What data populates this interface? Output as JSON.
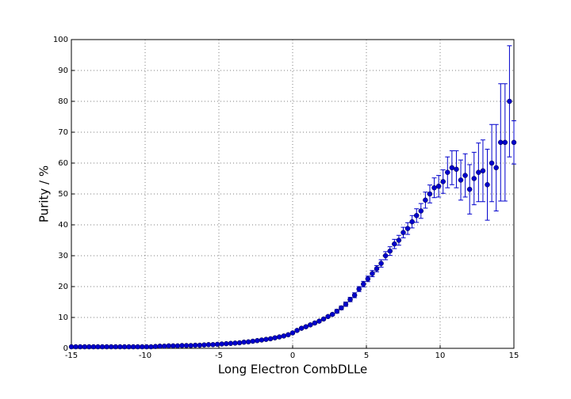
{
  "chart_data": {
    "type": "errorbar-scatter",
    "xlabel": "Long Electron CombDLLe",
    "ylabel": "Purity / %",
    "xlim": [
      -15,
      15
    ],
    "ylim": [
      0,
      100
    ],
    "xticks": [
      -15,
      -10,
      -5,
      0,
      5,
      10,
      15
    ],
    "yticks": [
      0,
      10,
      20,
      30,
      40,
      50,
      60,
      70,
      80,
      90,
      100
    ],
    "grid": true,
    "series": [
      {
        "color": "#0000cc",
        "x": [
          -15,
          -14.7,
          -14.4,
          -14.1,
          -13.8,
          -13.5,
          -13.2,
          -12.9,
          -12.6,
          -12.3,
          -12,
          -11.7,
          -11.4,
          -11.1,
          -10.8,
          -10.5,
          -10.2,
          -9.9,
          -9.6,
          -9.3,
          -9,
          -8.7,
          -8.4,
          -8.1,
          -7.8,
          -7.5,
          -7.2,
          -6.9,
          -6.6,
          -6.3,
          -6,
          -5.7,
          -5.4,
          -5.1,
          -4.8,
          -4.5,
          -4.2,
          -3.9,
          -3.6,
          -3.3,
          -3,
          -2.7,
          -2.4,
          -2.1,
          -1.8,
          -1.5,
          -1.2,
          -0.9,
          -0.6,
          -0.3,
          0,
          0.3,
          0.6,
          0.9,
          1.2,
          1.5,
          1.8,
          2.1,
          2.4,
          2.7,
          3,
          3.3,
          3.6,
          3.9,
          4.2,
          4.5,
          4.8,
          5.1,
          5.4,
          5.7,
          6,
          6.3,
          6.6,
          6.9,
          7.2,
          7.5,
          7.8,
          8.1,
          8.4,
          8.7,
          9,
          9.3,
          9.6,
          9.9,
          10.2,
          10.5,
          10.8,
          11.1,
          11.4,
          11.7,
          12,
          12.3,
          12.6,
          12.9,
          13.2,
          13.5,
          13.8,
          14.1,
          14.4,
          14.7,
          15
        ],
        "values": [
          0.5,
          0.5,
          0.5,
          0.5,
          0.5,
          0.5,
          0.5,
          0.5,
          0.5,
          0.5,
          0.5,
          0.5,
          0.5,
          0.5,
          0.5,
          0.5,
          0.5,
          0.5,
          0.5,
          0.6,
          0.7,
          0.7,
          0.8,
          0.8,
          0.8,
          0.9,
          0.9,
          0.9,
          1.0,
          1.0,
          1.1,
          1.2,
          1.2,
          1.3,
          1.4,
          1.5,
          1.6,
          1.7,
          1.8,
          2.0,
          2.1,
          2.3,
          2.5,
          2.7,
          2.9,
          3.1,
          3.4,
          3.7,
          4.0,
          4.4,
          5.0,
          5.8,
          6.5,
          7.0,
          7.6,
          8.2,
          8.8,
          9.5,
          10.3,
          11.0,
          12.0,
          13.1,
          14.3,
          15.8,
          17.2,
          19.2,
          20.8,
          22.5,
          24.2,
          25.8,
          27.5,
          30.0,
          31.5,
          33.8,
          35.0,
          37.5,
          38.8,
          41.0,
          43.0,
          44.5,
          48.0,
          50.0,
          52.0,
          52.5,
          54.0,
          57.0,
          58.5,
          58.0,
          54.5,
          56.0,
          51.5,
          55.0,
          57.0,
          57.5,
          53.0,
          60.0,
          58.5,
          66.7,
          66.7,
          80.0,
          66.7
        ],
        "errors": [
          0.1,
          0.1,
          0.1,
          0.1,
          0.1,
          0.1,
          0.1,
          0.1,
          0.1,
          0.1,
          0.1,
          0.1,
          0.1,
          0.1,
          0.1,
          0.1,
          0.1,
          0.1,
          0.1,
          0.1,
          0.1,
          0.1,
          0.1,
          0.1,
          0.1,
          0.1,
          0.1,
          0.1,
          0.1,
          0.1,
          0.1,
          0.1,
          0.1,
          0.1,
          0.1,
          0.1,
          0.1,
          0.1,
          0.1,
          0.1,
          0.2,
          0.2,
          0.2,
          0.2,
          0.2,
          0.2,
          0.2,
          0.2,
          0.2,
          0.2,
          0.3,
          0.3,
          0.3,
          0.3,
          0.3,
          0.3,
          0.3,
          0.3,
          0.3,
          0.3,
          0.6,
          0.6,
          0.7,
          0.7,
          0.8,
          0.8,
          0.9,
          0.9,
          1.0,
          1.0,
          1.2,
          1.3,
          1.4,
          1.5,
          1.6,
          1.7,
          1.9,
          2.0,
          2.2,
          2.4,
          2.6,
          2.9,
          3.2,
          3.5,
          3.8,
          5.0,
          5.5,
          6.0,
          6.5,
          7.0,
          8.0,
          8.5,
          9.5,
          10.0,
          11.5,
          12.5,
          14.0,
          19.0,
          19.0,
          18.0,
          7.0
        ]
      }
    ]
  }
}
